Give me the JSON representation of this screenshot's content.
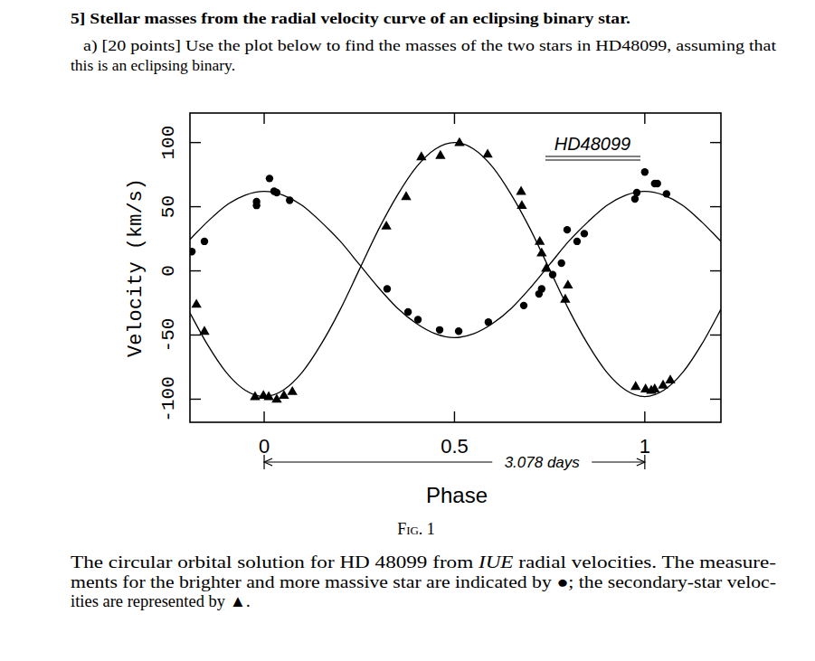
{
  "question": {
    "heading": "5] Stellar masses from the radial velocity curve of an eclipsing binary star.",
    "lines": [
      "a) [20 points] Use the plot below to find the masses of the two stars in HD48099, assuming that",
      "this is an eclipsing binary."
    ]
  },
  "chart_data": {
    "type": "line",
    "x_label": "Phase",
    "y_label": "Velocity (km/s)",
    "xlim": [
      -0.195,
      1.2
    ],
    "ylim": [
      -118,
      123
    ],
    "xticks": [
      0,
      0.5,
      1
    ],
    "yticks": [
      -100,
      -50,
      0,
      50,
      100
    ],
    "grid": false,
    "series": [
      {
        "type": "line",
        "color": "#000000",
        "line_style": "solid",
        "x": [
          -0.2,
          -0.15,
          -0.1,
          -0.05,
          0,
          0.05,
          0.1,
          0.15,
          0.2,
          0.25,
          0.3,
          0.35,
          0.4,
          0.45,
          0.5,
          0.55,
          0.6,
          0.65,
          0.7,
          0.75,
          0.8,
          0.85,
          0.9,
          0.95,
          1,
          1.05,
          1.1,
          1.15,
          1.2
        ],
        "values": [
          23,
          38,
          51,
          59,
          62,
          59,
          51,
          38,
          23,
          5,
          -13,
          -29,
          -41,
          -49,
          -52,
          -49,
          -41,
          -29,
          -13,
          5,
          23,
          38,
          51,
          59,
          62,
          59,
          51,
          38,
          23
        ]
      },
      {
        "type": "line",
        "color": "#000000",
        "line_style": "solid",
        "x": [
          -0.2,
          -0.15,
          -0.1,
          -0.05,
          0,
          0.05,
          0.1,
          0.15,
          0.2,
          0.25,
          0.3,
          0.35,
          0.4,
          0.45,
          0.5,
          0.55,
          0.6,
          0.65,
          0.7,
          0.75,
          0.8,
          0.85,
          0.9,
          0.95,
          1,
          1.05,
          1.1,
          1.15,
          1.2
        ],
        "values": [
          -30,
          -57,
          -79,
          -93,
          -98,
          -93,
          -79,
          -57,
          -30,
          1,
          32,
          59,
          81,
          95,
          100,
          95,
          81,
          59,
          32,
          1,
          -30,
          -57,
          -79,
          -93,
          -98,
          -93,
          -79,
          -57,
          -30
        ]
      },
      {
        "type": "scatter",
        "marker": "circle",
        "color": "#000000",
        "x": [
          -0.19,
          -0.157,
          -0.02,
          -0.02,
          0.014,
          0.026,
          0.033,
          0.067,
          0.323,
          0.378,
          0.404,
          0.461,
          0.511,
          0.589,
          0.682,
          0.722,
          0.729,
          0.758,
          0.781,
          0.796,
          0.822,
          0.841,
          0.974,
          0.979,
          1.0,
          1.026,
          1.033,
          1.057
        ],
        "values": [
          15,
          23,
          51,
          54,
          72,
          62,
          61,
          55,
          -14,
          -32,
          -38,
          -46,
          -47,
          -40,
          -27,
          -18,
          -14,
          -3,
          6,
          32,
          23,
          29,
          56,
          61,
          77,
          68,
          68,
          60
        ]
      },
      {
        "type": "scatter",
        "marker": "triangle",
        "color": "#000000",
        "x": [
          -0.178,
          -0.157,
          -0.024,
          -0.002,
          0.012,
          0.033,
          0.052,
          0.074,
          0.321,
          0.373,
          0.413,
          0.463,
          0.513,
          0.587,
          0.675,
          0.677,
          0.724,
          0.729,
          0.741,
          0.791,
          0.798,
          0.976,
          1.002,
          1.017,
          1.026,
          1.048,
          1.067
        ],
        "values": [
          -26,
          -47,
          -98,
          -97,
          -98,
          -100,
          -97,
          -94,
          35,
          58,
          89,
          90,
          100,
          91,
          62,
          51,
          23,
          14,
          2,
          -22,
          -11,
          -90,
          -92,
          -93,
          -92,
          -89,
          -85
        ]
      }
    ],
    "annotations": [
      {
        "text": "HD48099"
      },
      {
        "text": "3.078 days",
        "span": [
          0,
          1
        ]
      }
    ]
  },
  "caption": {
    "label": "Fig. 1",
    "lines": [
      [
        {
          "text": "The circular orbital solution for HD 48099 from "
        },
        {
          "text": "IUE",
          "italic": true
        },
        {
          "text": " radial velocities. The measure-"
        }
      ],
      [
        {
          "text": "ments for the brighter and more massive star are indicated by ●; the secondary-star veloc-"
        }
      ],
      [
        {
          "text": "ities are represented by ▲."
        }
      ]
    ]
  }
}
